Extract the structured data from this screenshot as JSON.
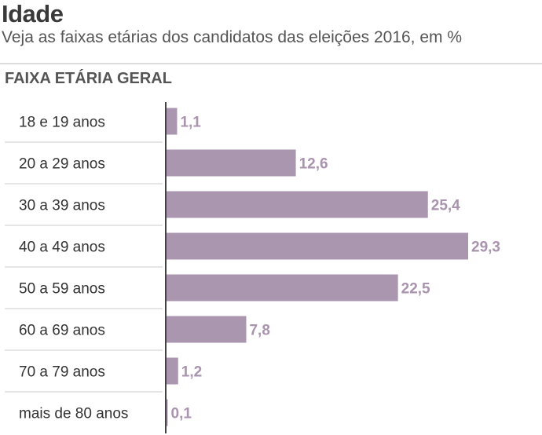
{
  "title": "Idade",
  "subtitle": "Veja as faixas etárias dos candidatos das eleições 2016, em %",
  "section_label": "FAIXA ETÁRIA GERAL",
  "colors": {
    "bar": "#ab96b0",
    "value_text": "#a993ae",
    "axis": "#444444",
    "row_line": "#dddddd"
  },
  "chart_data": {
    "type": "bar",
    "orientation": "horizontal",
    "title": "Idade",
    "subtitle": "Veja as faixas etárias dos candidatos das eleições 2016, em %",
    "categories": [
      "18 e 19 anos",
      "20 a 29 anos",
      "30 a 39 anos",
      "40 a 49 anos",
      "50 a 59 anos",
      "60 a 69 anos",
      "70 a 79 anos",
      "mais de 80 anos"
    ],
    "values": [
      1.1,
      12.6,
      25.4,
      29.3,
      22.5,
      7.8,
      1.2,
      0.1
    ],
    "value_labels": [
      "1,1",
      "12,6",
      "25,4",
      "29,3",
      "22,5",
      "7,8",
      "1,2",
      "0,1"
    ],
    "xlim": [
      0,
      29.3
    ],
    "xlabel": "",
    "ylabel": ""
  }
}
